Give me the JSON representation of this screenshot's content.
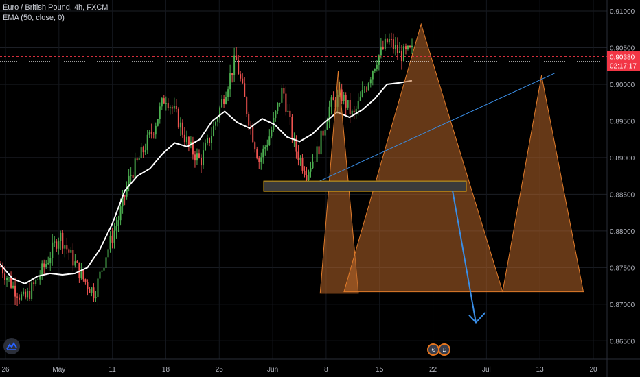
{
  "legend": {
    "symbol": "Euro / British Pound, 4h, FXCM",
    "indicator": "EMA (50, close, 0)"
  },
  "colors": {
    "background": "#000000",
    "up_candle": "#4caf50",
    "down_candle": "#ef5350",
    "ema": "#ffffff",
    "pattern_fill": "#b8662a",
    "pattern_stroke": "#e07b2a",
    "trendline": "#3a8ee6",
    "support_box": "#3b3b3b",
    "support_border": "#d4a017",
    "arrow": "#3a8ee6",
    "price_label": "#f23645"
  },
  "icons": [
    "tradingview-logo-icon",
    "economic-event-icon"
  ],
  "chart_data": {
    "type": "candlestick",
    "title": "Euro / British Pound, 4h, FXCM",
    "indicator": "EMA (50, close, 0)",
    "ylim": [
      0.8625,
      0.9115
    ],
    "y_ticks": [
      {
        "value": 0.91,
        "label": "0.91000"
      },
      {
        "value": 0.905,
        "label": "0.90500"
      },
      {
        "value": 0.9,
        "label": "0.90000"
      },
      {
        "value": 0.895,
        "label": "0.89500"
      },
      {
        "value": 0.89,
        "label": "0.89000"
      },
      {
        "value": 0.885,
        "label": "0.88500"
      },
      {
        "value": 0.88,
        "label": "0.88000"
      },
      {
        "value": 0.875,
        "label": "0.87500"
      },
      {
        "value": 0.87,
        "label": "0.87000"
      },
      {
        "value": 0.865,
        "label": "0.86500"
      }
    ],
    "x_ticks": [
      "26",
      "May",
      "11",
      "18",
      "25",
      "Jun",
      "8",
      "15",
      "22",
      "Jul",
      "13",
      "20"
    ],
    "current_price": {
      "value": 0.9038,
      "label": "0.90380",
      "countdown": "02:17:17"
    },
    "dotted_level": 0.9031,
    "ema_points": [
      [
        0,
        0.8755
      ],
      [
        1,
        0.8735
      ],
      [
        2,
        0.8728
      ],
      [
        3,
        0.8738
      ],
      [
        4,
        0.8742
      ],
      [
        5,
        0.874
      ],
      [
        6,
        0.8742
      ],
      [
        7,
        0.875
      ],
      [
        8,
        0.8775
      ],
      [
        9,
        0.881
      ],
      [
        10,
        0.8855
      ],
      [
        11,
        0.8875
      ],
      [
        12,
        0.8885
      ],
      [
        13,
        0.8905
      ],
      [
        14,
        0.892
      ],
      [
        15,
        0.8915
      ],
      [
        16,
        0.8925
      ],
      [
        17,
        0.895
      ],
      [
        18,
        0.8963
      ],
      [
        19,
        0.8948
      ],
      [
        20,
        0.894
      ],
      [
        21,
        0.8953
      ],
      [
        22,
        0.8945
      ],
      [
        23,
        0.8928
      ],
      [
        24,
        0.8922
      ],
      [
        25,
        0.8932
      ],
      [
        26,
        0.8948
      ],
      [
        27,
        0.8962
      ],
      [
        28,
        0.8955
      ],
      [
        29,
        0.8965
      ],
      [
        30,
        0.898
      ],
      [
        31,
        0.9
      ],
      [
        32,
        0.9002
      ],
      [
        33,
        0.9005
      ]
    ],
    "swing_path": [
      [
        0,
        0.8752
      ],
      [
        1,
        0.8725
      ],
      [
        2,
        0.8705
      ],
      [
        3,
        0.873
      ],
      [
        4,
        0.876
      ],
      [
        5,
        0.8795
      ],
      [
        6,
        0.8765
      ],
      [
        7,
        0.8735
      ],
      [
        8,
        0.8715
      ],
      [
        9,
        0.877
      ],
      [
        10,
        0.8815
      ],
      [
        11,
        0.8875
      ],
      [
        12,
        0.8905
      ],
      [
        13,
        0.894
      ],
      [
        14,
        0.8985
      ],
      [
        15,
        0.8955
      ],
      [
        16,
        0.8915
      ],
      [
        17,
        0.8895
      ],
      [
        18,
        0.8935
      ],
      [
        19,
        0.8985
      ],
      [
        20,
        0.9035
      ],
      [
        21,
        0.896
      ],
      [
        22,
        0.8895
      ],
      [
        23,
        0.8935
      ],
      [
        24,
        0.8995
      ],
      [
        25,
        0.8915
      ],
      [
        26,
        0.888
      ],
      [
        27,
        0.891
      ],
      [
        28,
        0.897
      ],
      [
        29,
        0.8985
      ],
      [
        30,
        0.8955
      ],
      [
        31,
        0.8995
      ],
      [
        32,
        0.9035
      ],
      [
        33,
        0.906
      ],
      [
        34,
        0.904
      ],
      [
        35,
        0.9045
      ]
    ],
    "pattern_triangles": [
      {
        "apex": [
          0.905,
          0.9018
        ],
        "base": [
          0.9025,
          0.9078,
          0.8715
        ]
      },
      {
        "apex": [
          0.9165,
          0.9082
        ],
        "base": [
          0.9058,
          0.9278,
          0.8717
        ]
      },
      {
        "apex": [
          0.9332,
          0.9012
        ],
        "base": [
          0.9278,
          0.939,
          0.8717
        ]
      }
    ],
    "trendline": {
      "from": [
        0.9022,
        0.8867
      ],
      "to": [
        0.935,
        0.9015
      ]
    },
    "support_zone": {
      "from": 0.8854,
      "to": 0.8868
    },
    "projection_arrow": {
      "from": 0.8855,
      "to": 0.8675
    }
  }
}
